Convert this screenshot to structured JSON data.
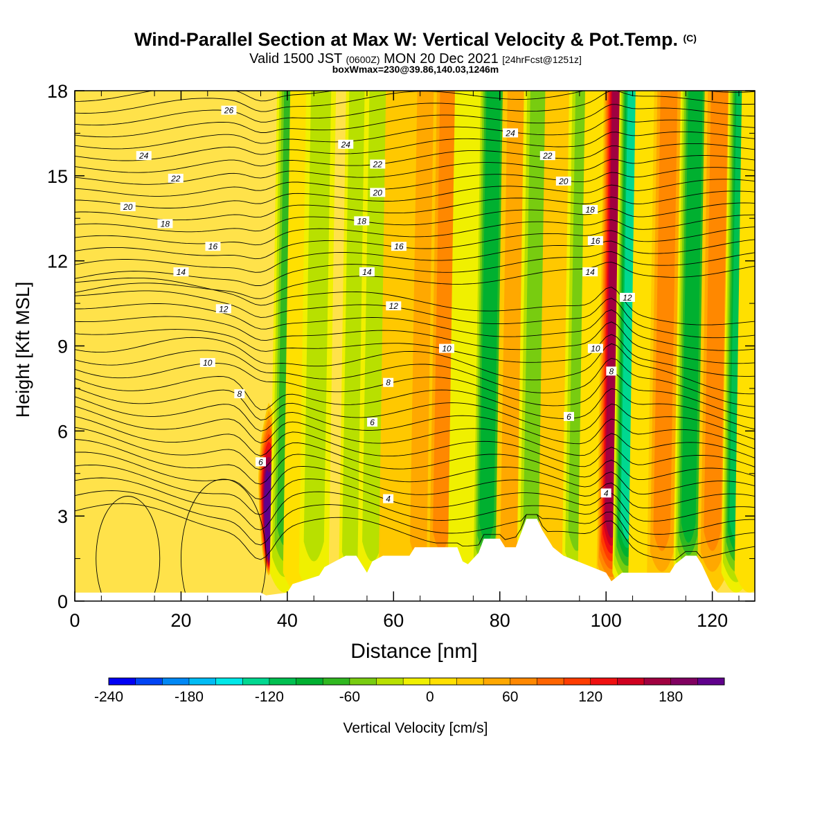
{
  "header": {
    "title": "Wind-Parallel Section at Max W: Vertical Velocity & Pot.Temp.",
    "copyright": "(C)",
    "subtitle_pre": "Valid 1500 JST",
    "subtitle_z": "(0600Z)",
    "subtitle_main": "MON 20 Dec 2021",
    "subtitle_fcst": "[24hrFcst@1251z]",
    "box_info": "boxWmax=230@39.86,140.03,1246m"
  },
  "chart_data": {
    "type": "heatmap",
    "xlabel": "Distance [nm]",
    "ylabel": "Height [Kft MSL]",
    "xlim": [
      0,
      128
    ],
    "ylim": [
      0,
      18
    ],
    "x_ticks": [
      "0",
      "20",
      "40",
      "60",
      "80",
      "100",
      "120"
    ],
    "y_ticks": [
      "0",
      "3",
      "6",
      "9",
      "12",
      "15",
      "18"
    ],
    "colorbar": {
      "label": "Vertical Velocity [cm/s]",
      "tick_labels": [
        "-240",
        "-180",
        "-120",
        "-60",
        "0",
        "60",
        "120",
        "180"
      ],
      "range": [
        -240,
        220
      ],
      "colors": [
        "#0000f5",
        "#0044f5",
        "#0088f5",
        "#00bcf5",
        "#00e8e8",
        "#00d890",
        "#00c050",
        "#00b030",
        "#30b820",
        "#78cc10",
        "#b8e000",
        "#f0f000",
        "#ffe000",
        "#ffc800",
        "#ffa800",
        "#ff8800",
        "#ff6400",
        "#ff3c00",
        "#f01010",
        "#d00020",
        "#a00040",
        "#800060",
        "#60008c"
      ]
    },
    "vertical_velocity_bands": [
      {
        "x": 36.5,
        "w": 200,
        "top": 7.0
      },
      {
        "x": 39.5,
        "w": -70,
        "top": 18
      },
      {
        "x": 42,
        "w": 20,
        "top": 18
      },
      {
        "x": 45,
        "w": -30,
        "top": 18
      },
      {
        "x": 52.5,
        "w": -40,
        "top": 18
      },
      {
        "x": 56,
        "w": -25,
        "top": 18
      },
      {
        "x": 60,
        "w": 25,
        "top": 18
      },
      {
        "x": 65,
        "w": 45,
        "top": 18
      },
      {
        "x": 69,
        "w": 60,
        "top": 18
      },
      {
        "x": 73,
        "w": -20,
        "top": 18
      },
      {
        "x": 77.5,
        "w": -95,
        "top": 18
      },
      {
        "x": 82,
        "w": 55,
        "top": 18
      },
      {
        "x": 86,
        "w": -50,
        "top": 18
      },
      {
        "x": 90,
        "w": 25,
        "top": 18
      },
      {
        "x": 94.5,
        "w": -45,
        "top": 18
      },
      {
        "x": 97.5,
        "w": 15,
        "top": 18
      },
      {
        "x": 101,
        "w": 160,
        "top": 18
      },
      {
        "x": 104,
        "w": -130,
        "top": 18
      },
      {
        "x": 107,
        "w": 20,
        "top": 18
      },
      {
        "x": 110.5,
        "w": 70,
        "top": 18
      },
      {
        "x": 115.5,
        "w": -95,
        "top": 18
      },
      {
        "x": 120,
        "w": 75,
        "top": 18
      },
      {
        "x": 124.5,
        "w": -105,
        "top": 18
      },
      {
        "x": 127,
        "w": 15,
        "top": 18
      }
    ],
    "terrain": [
      [
        0,
        0.3
      ],
      [
        35,
        0.3
      ],
      [
        36,
        0.2
      ],
      [
        40,
        0.3
      ],
      [
        41,
        0.6
      ],
      [
        46,
        0.9
      ],
      [
        47,
        1.2
      ],
      [
        49,
        1.4
      ],
      [
        51,
        1.6
      ],
      [
        53,
        1.6
      ],
      [
        54,
        1.3
      ],
      [
        55,
        1.0
      ],
      [
        56,
        1.4
      ],
      [
        58,
        1.6
      ],
      [
        63,
        1.6
      ],
      [
        64,
        1.9
      ],
      [
        72,
        1.9
      ],
      [
        73,
        1.4
      ],
      [
        74,
        1.3
      ],
      [
        76,
        1.7
      ],
      [
        77,
        2.2
      ],
      [
        80,
        2.2
      ],
      [
        81,
        1.9
      ],
      [
        83,
        1.9
      ],
      [
        84,
        2.4
      ],
      [
        85,
        2.9
      ],
      [
        87,
        2.9
      ],
      [
        88,
        2.5
      ],
      [
        89,
        2.2
      ],
      [
        90,
        1.9
      ],
      [
        92,
        1.6
      ],
      [
        96,
        1.3
      ],
      [
        100,
        1.0
      ],
      [
        101,
        0.7
      ],
      [
        103,
        1.0
      ],
      [
        112,
        1.0
      ],
      [
        113,
        1.3
      ],
      [
        115,
        1.6
      ],
      [
        117,
        1.6
      ],
      [
        118,
        1.3
      ],
      [
        119,
        0.9
      ],
      [
        120,
        0.5
      ],
      [
        121,
        0.3
      ],
      [
        128,
        0.3
      ]
    ],
    "contour_labels": [
      {
        "text": "26",
        "x": 29,
        "y": 17.3
      },
      {
        "text": "24",
        "x": 13,
        "y": 15.7
      },
      {
        "text": "24",
        "x": 51,
        "y": 16.1
      },
      {
        "text": "24",
        "x": 82,
        "y": 16.5
      },
      {
        "text": "22",
        "x": 19,
        "y": 14.9
      },
      {
        "text": "22",
        "x": 57,
        "y": 15.4
      },
      {
        "text": "22",
        "x": 89,
        "y": 15.7
      },
      {
        "text": "20",
        "x": 10,
        "y": 13.9
      },
      {
        "text": "20",
        "x": 57,
        "y": 14.4
      },
      {
        "text": "20",
        "x": 92,
        "y": 14.8
      },
      {
        "text": "18",
        "x": 17,
        "y": 13.3
      },
      {
        "text": "18",
        "x": 54,
        "y": 13.4
      },
      {
        "text": "18",
        "x": 97,
        "y": 13.8
      },
      {
        "text": "16",
        "x": 26,
        "y": 12.5
      },
      {
        "text": "16",
        "x": 61,
        "y": 12.5
      },
      {
        "text": "16",
        "x": 98,
        "y": 12.7
      },
      {
        "text": "14",
        "x": 20,
        "y": 11.6
      },
      {
        "text": "14",
        "x": 55,
        "y": 11.6
      },
      {
        "text": "14",
        "x": 97,
        "y": 11.6
      },
      {
        "text": "12",
        "x": 28,
        "y": 10.3
      },
      {
        "text": "12",
        "x": 60,
        "y": 10.4
      },
      {
        "text": "12",
        "x": 104,
        "y": 10.7
      },
      {
        "text": "10",
        "x": 25,
        "y": 8.4
      },
      {
        "text": "10",
        "x": 70,
        "y": 8.9
      },
      {
        "text": "10",
        "x": 98,
        "y": 8.9
      },
      {
        "text": "8",
        "x": 31,
        "y": 7.3
      },
      {
        "text": "8",
        "x": 59,
        "y": 7.7
      },
      {
        "text": "8",
        "x": 101,
        "y": 8.1
      },
      {
        "text": "6",
        "x": 35,
        "y": 4.9
      },
      {
        "text": "6",
        "x": 56,
        "y": 6.3
      },
      {
        "text": "6",
        "x": 93,
        "y": 6.5
      },
      {
        "text": "4",
        "x": 59,
        "y": 3.6
      },
      {
        "text": "4",
        "x": 100,
        "y": 3.8
      }
    ]
  }
}
